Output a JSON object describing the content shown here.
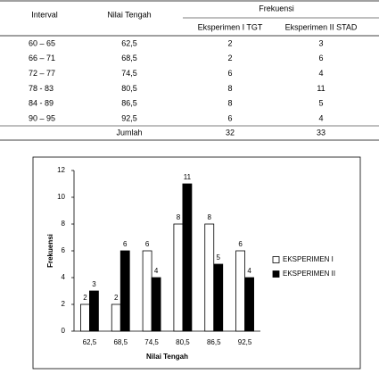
{
  "table": {
    "header": [
      "Interval",
      "Nilai Tengah",
      "Frekuensi"
    ],
    "subheader": [
      "Eksperimen I TGT",
      "Eksperimen II STAD"
    ],
    "rows": [
      [
        "60 – 65",
        "62,5",
        2,
        3
      ],
      [
        "66 – 71",
        "68,5",
        2,
        6
      ],
      [
        "72 – 77",
        "74,5",
        6,
        4
      ],
      [
        "78 - 83",
        "80,5",
        8,
        11
      ],
      [
        "84 - 89",
        "86,5",
        8,
        5
      ],
      [
        "90 – 95",
        "92,5",
        6,
        4
      ]
    ],
    "total": [
      "Jumlah",
      32,
      33
    ]
  },
  "chart_data": {
    "type": "bar",
    "x_label": "Nilai Tengah",
    "y_label": "Frekuensi",
    "categories": [
      "62,5",
      "68,5",
      "74,5",
      "80,5",
      "86,5",
      "92,5"
    ],
    "series": [
      {
        "name": "EKSPERIMEN I",
        "color": "#ffffff",
        "values": [
          2,
          2,
          6,
          8,
          8,
          6
        ]
      },
      {
        "name": "EKSPERIMEN II",
        "color": "#000000",
        "values": [
          3,
          6,
          4,
          11,
          5,
          4
        ]
      }
    ],
    "ylim": [
      0,
      12
    ],
    "yticks": [
      0,
      2,
      4,
      6,
      8,
      10,
      12
    ],
    "legend": "right"
  }
}
